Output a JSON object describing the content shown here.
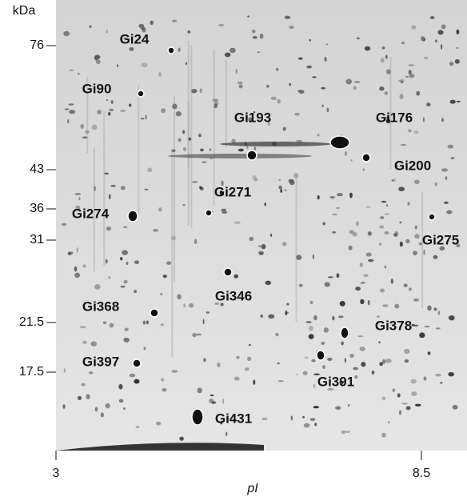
{
  "y_axis": {
    "title": "kDa",
    "ticks": [
      "76",
      "43",
      "36",
      "31",
      "21.5",
      "17.5"
    ]
  },
  "x_axis": {
    "title": "pI",
    "ticks": [
      "3",
      "8.5"
    ]
  },
  "spots": [
    {
      "label": "Gi24"
    },
    {
      "label": "Gi90"
    },
    {
      "label": "Gi193"
    },
    {
      "label": "Gi176"
    },
    {
      "label": "Gi200"
    },
    {
      "label": "Gi271"
    },
    {
      "label": "Gi274"
    },
    {
      "label": "Gi275"
    },
    {
      "label": "Gi346"
    },
    {
      "label": "Gi368"
    },
    {
      "label": "Gi378"
    },
    {
      "label": "Gi397"
    },
    {
      "label": "Gi391"
    },
    {
      "label": "Gi431"
    }
  ]
}
